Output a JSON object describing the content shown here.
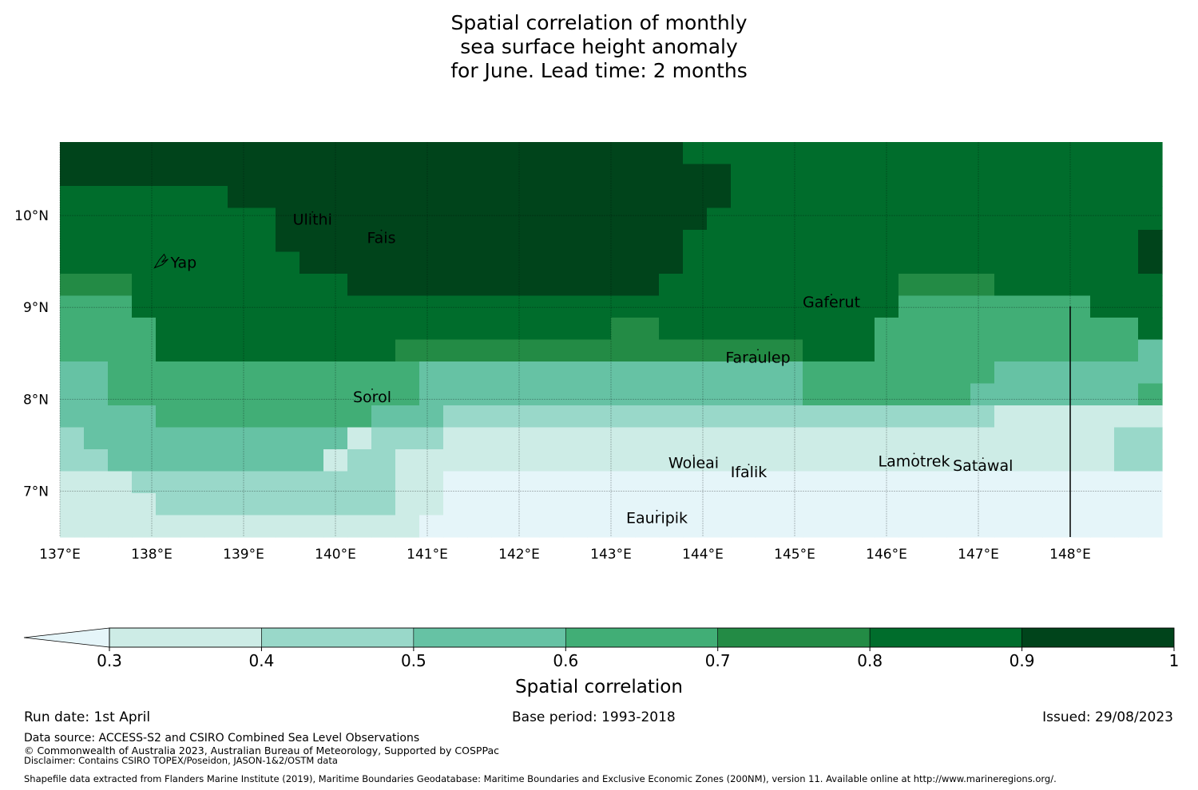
{
  "title_lines": [
    "Spatial correlation of monthly",
    "sea surface height anomaly",
    "for June. Lead time: 2 months"
  ],
  "map": {
    "lon_range": [
      137.0,
      149.0
    ],
    "lat_range": [
      6.5,
      10.8
    ],
    "x_ticks": [
      {
        "v": 137,
        "label": "137°E"
      },
      {
        "v": 138,
        "label": "138°E"
      },
      {
        "v": 139,
        "label": "139°E"
      },
      {
        "v": 140,
        "label": "140°E"
      },
      {
        "v": 141,
        "label": "141°E"
      },
      {
        "v": 142,
        "label": "142°E"
      },
      {
        "v": 143,
        "label": "143°E"
      },
      {
        "v": 144,
        "label": "144°E"
      },
      {
        "v": 145,
        "label": "145°E"
      },
      {
        "v": 146,
        "label": "146°E"
      },
      {
        "v": 147,
        "label": "147°E"
      },
      {
        "v": 148,
        "label": "148°E"
      }
    ],
    "y_ticks": [
      {
        "v": 10,
        "label": "10°N"
      },
      {
        "v": 9,
        "label": "9°N"
      },
      {
        "v": 8,
        "label": "8°N"
      },
      {
        "v": 7,
        "label": "7°N"
      }
    ],
    "grid_rows_top_to_bottom": [
      "7777777777777777777777777766666666666666666666",
      "7777777777777777777777777777666666666666666666",
      "6666666777777777777777777777666666666666666666",
      "6666666667777777777777777776666666666666666666",
      "6666666667777777777777777766666666666666666667",
      "6666666666777777777777777766666666666666666667",
      "5556666666667777777777777666666666655556666666",
      "4446666666666666666666666666666666644444444666",
      "4444666666666666666666655666666666444444444446",
      "4444666666666655555555555555555666444444444443",
      "3344444444444443333333333333333444444443333333",
      "3344444444444443333333333333333444444433333334",
      "3333444444444333222222222222222222222221111111",
      "2333333333331222111111111111111111111111111122",
      "2233333333312211111111111111111111111111111122",
      "1112222222222211000000000000000000000000000000",
      "1111222222222211000000000000000000000000000000",
      "1111111111111110000000000000000000000000000000"
    ],
    "islands": [
      {
        "name": "Ulithi",
        "lon": 139.75,
        "lat": 9.9
      },
      {
        "name": "Fais",
        "lon": 140.5,
        "lat": 9.7
      },
      {
        "name": "Yap",
        "lon": 138.1,
        "lat": 9.5
      },
      {
        "name": "Gaferut",
        "lon": 145.4,
        "lat": 9.0
      },
      {
        "name": "Faraulep",
        "lon": 144.6,
        "lat": 8.4
      },
      {
        "name": "Sorol",
        "lon": 140.4,
        "lat": 7.97
      },
      {
        "name": "Woleai",
        "lon": 143.9,
        "lat": 7.25
      },
      {
        "name": "Ifalik",
        "lon": 144.5,
        "lat": 7.15
      },
      {
        "name": "Lamotrek",
        "lon": 146.3,
        "lat": 7.27
      },
      {
        "name": "Satawal",
        "lon": 147.05,
        "lat": 7.22
      },
      {
        "name": "Eauripik",
        "lon": 143.5,
        "lat": 6.65
      }
    ]
  },
  "colorbar": {
    "levels": [
      0.3,
      0.4,
      0.5,
      0.6,
      0.7,
      0.8,
      0.9,
      1.0
    ],
    "tick_labels": [
      "0.3",
      "0.4",
      "0.5",
      "0.6",
      "0.7",
      "0.8",
      "0.9",
      "1"
    ],
    "colors": [
      "#cdece6",
      "#99d8c9",
      "#66c2a4",
      "#41ae76",
      "#238b45",
      "#006d2c",
      "#00441b"
    ],
    "under_color": "#e5f5f9",
    "label": "Spatial correlation"
  },
  "footer": {
    "run_date": "Run date: 1st April",
    "base_period": "Base period: 1993-2018",
    "issued": "Issued: 29/08/2023",
    "data_source": "Data source: ACCESS-S2 and CSIRO Combined Sea Level Observations",
    "copyright": "© Commonwealth of Australia 2023, Australian Bureau of Meteorology, Supported by COSPPac",
    "disclaimer": "Disclaimer: Contains CSIRO TOPEX/Poseidon, JASON-1&2/OSTM data",
    "shapefile": "Shapefile data extracted from Flanders Marine Institute (2019), Maritime Boundaries Geodatabase: Maritime Boundaries and Exclusive Economic Zones (200NM), version 11. Available online at http://www.marineregions.org/."
  }
}
